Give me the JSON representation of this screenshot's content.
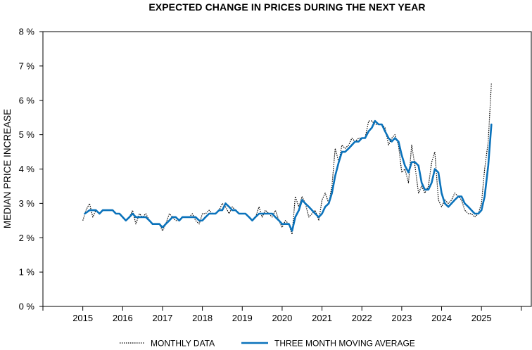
{
  "chart_data": {
    "type": "line",
    "title": "EXPECTED CHANGE IN PRICES DURING THE NEXT YEAR",
    "ylabel": "MEDIAN PRICE INCREASE",
    "xlabel": "",
    "xlim": [
      2014.0,
      2026.25
    ],
    "ylim": [
      0,
      8
    ],
    "grid": false,
    "legend_position": "bottom",
    "y_ticks": [
      0,
      1,
      2,
      3,
      4,
      5,
      6,
      7,
      8
    ],
    "y_tick_labels": [
      "0 %",
      "1 %",
      "2 %",
      "3 %",
      "4 %",
      "5 %",
      "6 %",
      "7 %",
      "8 %"
    ],
    "x_ticks": [
      2015,
      2016,
      2017,
      2018,
      2019,
      2020,
      2021,
      2022,
      2023,
      2024,
      2025
    ],
    "x_tick_labels": [
      "2015",
      "2016",
      "2017",
      "2018",
      "2019",
      "2020",
      "2021",
      "2022",
      "2023",
      "2024",
      "2025"
    ],
    "series": [
      {
        "name": "MONTHLY DATA",
        "style": "dotted",
        "color": "#000000",
        "points": [
          [
            2015.0,
            2.5
          ],
          [
            2015.08,
            2.8
          ],
          [
            2015.17,
            3.0
          ],
          [
            2015.25,
            2.6
          ],
          [
            2015.33,
            2.8
          ],
          [
            2015.42,
            2.7
          ],
          [
            2015.5,
            2.8
          ],
          [
            2015.58,
            2.8
          ],
          [
            2015.67,
            2.8
          ],
          [
            2015.75,
            2.8
          ],
          [
            2015.83,
            2.7
          ],
          [
            2015.92,
            2.7
          ],
          [
            2016.0,
            2.6
          ],
          [
            2016.08,
            2.5
          ],
          [
            2016.17,
            2.6
          ],
          [
            2016.25,
            2.8
          ],
          [
            2016.33,
            2.4
          ],
          [
            2016.42,
            2.7
          ],
          [
            2016.5,
            2.6
          ],
          [
            2016.58,
            2.7
          ],
          [
            2016.67,
            2.5
          ],
          [
            2016.75,
            2.4
          ],
          [
            2016.83,
            2.4
          ],
          [
            2016.92,
            2.4
          ],
          [
            2017.0,
            2.2
          ],
          [
            2017.08,
            2.4
          ],
          [
            2017.17,
            2.7
          ],
          [
            2017.25,
            2.6
          ],
          [
            2017.33,
            2.5
          ],
          [
            2017.42,
            2.5
          ],
          [
            2017.5,
            2.6
          ],
          [
            2017.58,
            2.6
          ],
          [
            2017.67,
            2.6
          ],
          [
            2017.75,
            2.7
          ],
          [
            2017.83,
            2.5
          ],
          [
            2017.92,
            2.4
          ],
          [
            2018.0,
            2.7
          ],
          [
            2018.08,
            2.7
          ],
          [
            2018.17,
            2.8
          ],
          [
            2018.25,
            2.7
          ],
          [
            2018.33,
            2.7
          ],
          [
            2018.42,
            2.8
          ],
          [
            2018.5,
            3.0
          ],
          [
            2018.58,
            2.9
          ],
          [
            2018.67,
            2.7
          ],
          [
            2018.75,
            2.9
          ],
          [
            2018.83,
            2.8
          ],
          [
            2018.92,
            2.7
          ],
          [
            2019.0,
            2.7
          ],
          [
            2019.08,
            2.7
          ],
          [
            2019.17,
            2.6
          ],
          [
            2019.25,
            2.5
          ],
          [
            2019.33,
            2.6
          ],
          [
            2019.42,
            2.9
          ],
          [
            2019.5,
            2.6
          ],
          [
            2019.58,
            2.8
          ],
          [
            2019.67,
            2.7
          ],
          [
            2019.75,
            2.6
          ],
          [
            2019.83,
            2.8
          ],
          [
            2019.92,
            2.5
          ],
          [
            2020.0,
            2.3
          ],
          [
            2020.08,
            2.5
          ],
          [
            2020.17,
            2.4
          ],
          [
            2020.25,
            2.1
          ],
          [
            2020.33,
            3.2
          ],
          [
            2020.42,
            2.9
          ],
          [
            2020.5,
            3.2
          ],
          [
            2020.58,
            3.0
          ],
          [
            2020.67,
            2.6
          ],
          [
            2020.75,
            2.7
          ],
          [
            2020.83,
            2.8
          ],
          [
            2020.92,
            2.5
          ],
          [
            2021.0,
            3.1
          ],
          [
            2021.08,
            3.3
          ],
          [
            2021.17,
            3.0
          ],
          [
            2021.25,
            3.5
          ],
          [
            2021.33,
            4.6
          ],
          [
            2021.42,
            4.2
          ],
          [
            2021.5,
            4.7
          ],
          [
            2021.58,
            4.6
          ],
          [
            2021.67,
            4.7
          ],
          [
            2021.75,
            4.9
          ],
          [
            2021.83,
            4.8
          ],
          [
            2021.92,
            4.9
          ],
          [
            2022.0,
            4.9
          ],
          [
            2022.08,
            4.9
          ],
          [
            2022.17,
            5.4
          ],
          [
            2022.25,
            5.4
          ],
          [
            2022.33,
            5.3
          ],
          [
            2022.42,
            5.3
          ],
          [
            2022.5,
            5.3
          ],
          [
            2022.58,
            5.2
          ],
          [
            2022.67,
            4.7
          ],
          [
            2022.75,
            4.9
          ],
          [
            2022.83,
            5.0
          ],
          [
            2022.92,
            4.7
          ],
          [
            2023.0,
            3.9
          ],
          [
            2023.08,
            4.0
          ],
          [
            2023.17,
            3.6
          ],
          [
            2023.25,
            4.7
          ],
          [
            2023.33,
            4.1
          ],
          [
            2023.42,
            3.3
          ],
          [
            2023.5,
            3.5
          ],
          [
            2023.58,
            3.3
          ],
          [
            2023.67,
            3.5
          ],
          [
            2023.75,
            4.2
          ],
          [
            2023.83,
            4.5
          ],
          [
            2023.92,
            3.1
          ],
          [
            2024.0,
            2.9
          ],
          [
            2024.08,
            3.1
          ],
          [
            2024.17,
            3.0
          ],
          [
            2024.25,
            3.1
          ],
          [
            2024.33,
            3.3
          ],
          [
            2024.42,
            3.2
          ],
          [
            2024.5,
            3.1
          ],
          [
            2024.58,
            2.8
          ],
          [
            2024.67,
            2.7
          ],
          [
            2024.75,
            2.7
          ],
          [
            2024.83,
            2.6
          ],
          [
            2024.92,
            2.7
          ],
          [
            2025.0,
            3.0
          ],
          [
            2025.08,
            4.0
          ],
          [
            2025.17,
            4.8
          ],
          [
            2025.25,
            6.5
          ]
        ]
      },
      {
        "name": "THREE MONTH MOVING AVERAGE",
        "style": "solid",
        "color": "#0a72bb",
        "points": [
          [
            2015.05,
            2.7
          ],
          [
            2015.17,
            2.8
          ],
          [
            2015.25,
            2.8
          ],
          [
            2015.33,
            2.8
          ],
          [
            2015.42,
            2.7
          ],
          [
            2015.5,
            2.8
          ],
          [
            2015.58,
            2.8
          ],
          [
            2015.67,
            2.8
          ],
          [
            2015.75,
            2.8
          ],
          [
            2015.83,
            2.7
          ],
          [
            2015.92,
            2.7
          ],
          [
            2016.0,
            2.6
          ],
          [
            2016.08,
            2.5
          ],
          [
            2016.17,
            2.6
          ],
          [
            2016.25,
            2.7
          ],
          [
            2016.33,
            2.6
          ],
          [
            2016.42,
            2.6
          ],
          [
            2016.5,
            2.6
          ],
          [
            2016.58,
            2.6
          ],
          [
            2016.67,
            2.5
          ],
          [
            2016.75,
            2.4
          ],
          [
            2016.83,
            2.4
          ],
          [
            2016.92,
            2.4
          ],
          [
            2017.0,
            2.3
          ],
          [
            2017.08,
            2.4
          ],
          [
            2017.17,
            2.5
          ],
          [
            2017.25,
            2.6
          ],
          [
            2017.33,
            2.6
          ],
          [
            2017.42,
            2.5
          ],
          [
            2017.5,
            2.6
          ],
          [
            2017.58,
            2.6
          ],
          [
            2017.67,
            2.6
          ],
          [
            2017.75,
            2.6
          ],
          [
            2017.83,
            2.6
          ],
          [
            2017.92,
            2.5
          ],
          [
            2018.0,
            2.5
          ],
          [
            2018.08,
            2.6
          ],
          [
            2018.17,
            2.7
          ],
          [
            2018.25,
            2.7
          ],
          [
            2018.33,
            2.7
          ],
          [
            2018.42,
            2.8
          ],
          [
            2018.5,
            2.8
          ],
          [
            2018.58,
            3.0
          ],
          [
            2018.67,
            2.9
          ],
          [
            2018.75,
            2.8
          ],
          [
            2018.83,
            2.8
          ],
          [
            2018.92,
            2.7
          ],
          [
            2019.0,
            2.7
          ],
          [
            2019.08,
            2.7
          ],
          [
            2019.17,
            2.6
          ],
          [
            2019.25,
            2.5
          ],
          [
            2019.33,
            2.6
          ],
          [
            2019.42,
            2.7
          ],
          [
            2019.5,
            2.7
          ],
          [
            2019.58,
            2.7
          ],
          [
            2019.67,
            2.7
          ],
          [
            2019.75,
            2.7
          ],
          [
            2019.83,
            2.6
          ],
          [
            2019.92,
            2.5
          ],
          [
            2020.0,
            2.4
          ],
          [
            2020.08,
            2.4
          ],
          [
            2020.17,
            2.4
          ],
          [
            2020.25,
            2.2
          ],
          [
            2020.33,
            2.6
          ],
          [
            2020.42,
            2.8
          ],
          [
            2020.5,
            3.1
          ],
          [
            2020.58,
            3.0
          ],
          [
            2020.67,
            2.9
          ],
          [
            2020.75,
            2.8
          ],
          [
            2020.83,
            2.7
          ],
          [
            2020.92,
            2.6
          ],
          [
            2021.0,
            2.7
          ],
          [
            2021.08,
            2.9
          ],
          [
            2021.17,
            3.0
          ],
          [
            2021.25,
            3.3
          ],
          [
            2021.33,
            3.8
          ],
          [
            2021.42,
            4.2
          ],
          [
            2021.5,
            4.5
          ],
          [
            2021.58,
            4.5
          ],
          [
            2021.67,
            4.6
          ],
          [
            2021.75,
            4.7
          ],
          [
            2021.83,
            4.8
          ],
          [
            2021.92,
            4.8
          ],
          [
            2022.0,
            4.9
          ],
          [
            2022.08,
            4.9
          ],
          [
            2022.17,
            5.1
          ],
          [
            2022.25,
            5.2
          ],
          [
            2022.33,
            5.4
          ],
          [
            2022.42,
            5.3
          ],
          [
            2022.5,
            5.3
          ],
          [
            2022.58,
            5.1
          ],
          [
            2022.67,
            4.9
          ],
          [
            2022.75,
            4.8
          ],
          [
            2022.83,
            4.9
          ],
          [
            2022.92,
            4.8
          ],
          [
            2023.0,
            4.4
          ],
          [
            2023.08,
            4.1
          ],
          [
            2023.17,
            3.9
          ],
          [
            2023.25,
            4.2
          ],
          [
            2023.33,
            4.2
          ],
          [
            2023.42,
            4.1
          ],
          [
            2023.5,
            3.6
          ],
          [
            2023.58,
            3.4
          ],
          [
            2023.67,
            3.4
          ],
          [
            2023.75,
            3.6
          ],
          [
            2023.83,
            4.0
          ],
          [
            2023.92,
            3.9
          ],
          [
            2024.0,
            3.3
          ],
          [
            2024.08,
            3.0
          ],
          [
            2024.17,
            2.9
          ],
          [
            2024.25,
            3.0
          ],
          [
            2024.33,
            3.1
          ],
          [
            2024.42,
            3.2
          ],
          [
            2024.5,
            3.2
          ],
          [
            2024.58,
            3.0
          ],
          [
            2024.67,
            2.9
          ],
          [
            2024.75,
            2.8
          ],
          [
            2024.83,
            2.7
          ],
          [
            2024.92,
            2.7
          ],
          [
            2025.0,
            2.8
          ],
          [
            2025.08,
            3.2
          ],
          [
            2025.17,
            4.1
          ],
          [
            2025.25,
            5.3
          ]
        ]
      }
    ]
  }
}
